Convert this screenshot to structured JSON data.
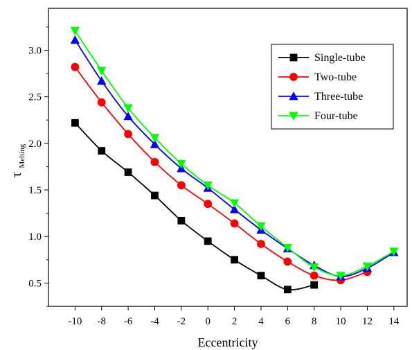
{
  "chart_data": {
    "type": "line",
    "title": "",
    "xlabel": "Eccentricity",
    "ylabel": "τ",
    "ylabel_subscript": "Melting",
    "xlim": [
      -12,
      15
    ],
    "ylim": [
      0.25,
      3.45
    ],
    "x_ticks": [
      -10,
      -8,
      -6,
      -4,
      -2,
      0,
      2,
      4,
      6,
      8,
      10,
      12,
      14
    ],
    "x_tick_labels": [
      "-10",
      "-8",
      "-6",
      "-4",
      "-2",
      "0",
      "2",
      "4",
      "6",
      "8",
      "10",
      "12",
      "14"
    ],
    "y_ticks": [
      0.5,
      1.0,
      1.5,
      2.0,
      2.5,
      3.0
    ],
    "y_tick_labels": [
      "0.5",
      "1.0",
      "1.5",
      "2.0",
      "2.5",
      "3.0"
    ],
    "grid": false,
    "legend_position": "top-right",
    "series": [
      {
        "name": "Single-tube",
        "color": "#000000",
        "marker": "square",
        "x": [
          -10,
          -8,
          -6,
          -4,
          -2,
          0,
          2,
          4,
          6,
          8
        ],
        "values": [
          2.22,
          1.92,
          1.69,
          1.44,
          1.17,
          0.95,
          0.75,
          0.58,
          0.43,
          0.48
        ]
      },
      {
        "name": "Two-tube",
        "color": "#ff0000",
        "marker": "circle",
        "x": [
          -10,
          -8,
          -6,
          -4,
          -2,
          0,
          2,
          4,
          6,
          8,
          10,
          12
        ],
        "values": [
          2.82,
          2.44,
          2.1,
          1.8,
          1.55,
          1.35,
          1.14,
          0.92,
          0.73,
          0.58,
          0.53,
          0.62
        ]
      },
      {
        "name": "Three-tube",
        "color": "#0000ff",
        "marker": "triangle-up",
        "x": [
          -10,
          -8,
          -6,
          -4,
          -2,
          0,
          2,
          4,
          6,
          8,
          10,
          12,
          14
        ],
        "values": [
          3.11,
          2.67,
          2.29,
          1.99,
          1.73,
          1.52,
          1.29,
          1.07,
          0.87,
          0.69,
          0.57,
          0.66,
          0.83
        ]
      },
      {
        "name": "Four-tube",
        "color": "#00ff00",
        "marker": "triangle-down",
        "x": [
          -10,
          -8,
          -6,
          -4,
          -2,
          0,
          2,
          4,
          6,
          8,
          10,
          12,
          14
        ],
        "values": [
          3.21,
          2.78,
          2.38,
          2.06,
          1.78,
          1.55,
          1.36,
          1.11,
          0.88,
          0.67,
          0.58,
          0.68,
          0.84
        ]
      }
    ]
  }
}
